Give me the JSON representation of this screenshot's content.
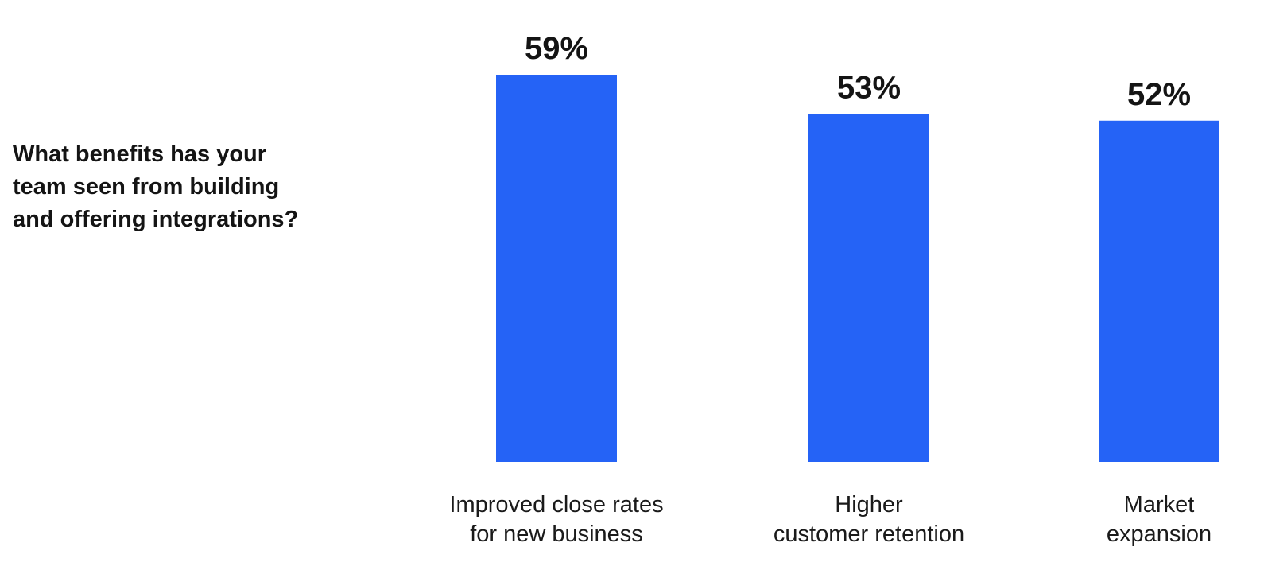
{
  "question": {
    "text": "What benefits has your\nteam seen from building\nand offering integrations?"
  },
  "colors": {
    "bar": "#2563F6",
    "text": "#141414"
  },
  "chart_data": {
    "type": "bar",
    "categories": [
      [
        "Improved close rates",
        "for new business"
      ],
      [
        "Higher",
        "customer retention"
      ],
      [
        "Market",
        "expansion"
      ]
    ],
    "values": [
      59,
      53,
      52
    ],
    "value_labels": [
      "59%",
      "53%",
      "52%"
    ],
    "unit": "%",
    "title": "",
    "xlabel": "",
    "ylabel": "",
    "ylim": [
      0,
      59
    ],
    "grid": false,
    "legend": "none"
  }
}
